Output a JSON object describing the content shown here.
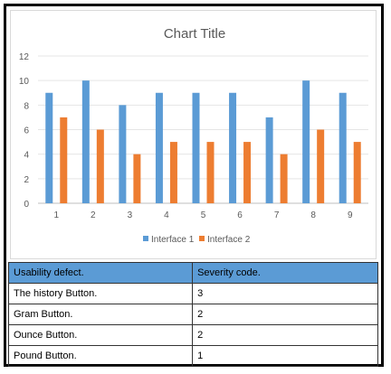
{
  "chart_data": {
    "type": "bar",
    "title": "Chart Title",
    "categories": [
      "1",
      "2",
      "3",
      "4",
      "5",
      "6",
      "7",
      "8",
      "9"
    ],
    "series": [
      {
        "name": "Interface 1",
        "color": "#5b9bd5",
        "values": [
          9,
          10,
          8,
          9,
          9,
          9,
          7,
          10,
          9
        ]
      },
      {
        "name": "Interface 2",
        "color": "#ed7d31",
        "values": [
          7,
          6,
          4,
          5,
          5,
          5,
          4,
          6,
          5
        ]
      }
    ],
    "ylim": [
      0,
      12
    ],
    "yticks": [
      0,
      2,
      4,
      6,
      8,
      10,
      12
    ],
    "grid": true,
    "legend": "bottom"
  },
  "table": {
    "headers": [
      "Usability defect.",
      "Severity code."
    ],
    "rows": [
      [
        "The history Button.",
        "3"
      ],
      [
        "Gram Button.",
        "2"
      ],
      [
        "Ounce Button.",
        "2"
      ],
      [
        "Pound Button.",
        "1"
      ]
    ]
  }
}
